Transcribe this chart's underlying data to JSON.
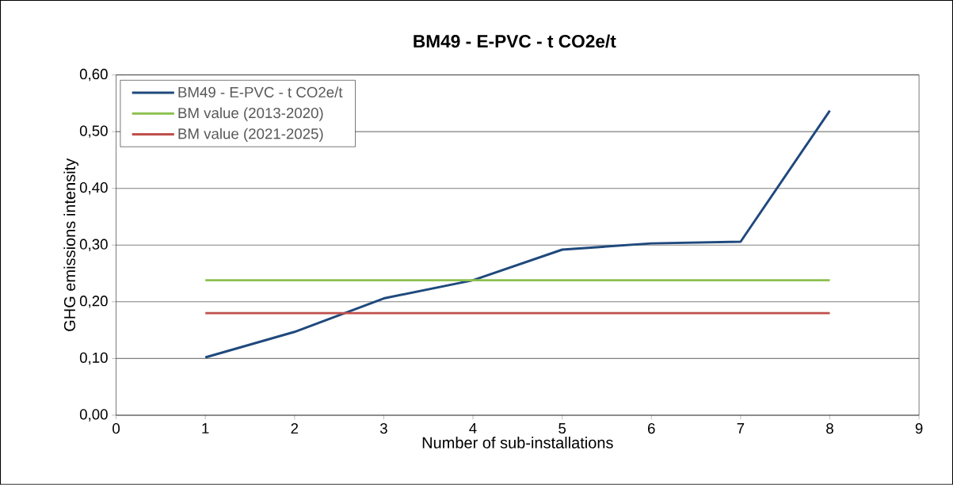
{
  "chart_data": {
    "type": "line",
    "title": "BM49 - E-PVC - t CO2e/t",
    "xlabel": "Number of sub-installations",
    "ylabel": "GHG emissions intensity",
    "xlim": [
      0,
      9
    ],
    "xticks": [
      0,
      1,
      2,
      3,
      4,
      5,
      6,
      7,
      8,
      9
    ],
    "ylim": [
      0,
      0.6
    ],
    "yticks": [
      {
        "value": 0,
        "label": "0,00"
      },
      {
        "value": 0.1,
        "label": "0,10"
      },
      {
        "value": 0.2,
        "label": "0,20"
      },
      {
        "value": 0.3,
        "label": "0,30"
      },
      {
        "value": 0.4,
        "label": "0,40"
      },
      {
        "value": 0.5,
        "label": "0,50"
      },
      {
        "value": 0.6,
        "label": "0,60"
      }
    ],
    "grid": "y",
    "legend": "top left",
    "marker": "none",
    "line_style": "solid",
    "series": [
      {
        "name": "BM49 - E-PVC - t CO2e/t",
        "color": "#1f497d",
        "x": [
          1,
          2,
          3,
          4,
          5,
          6,
          7,
          8
        ],
        "values": [
          0.102,
          0.147,
          0.206,
          0.238,
          0.292,
          0.303,
          0.306,
          0.537
        ]
      },
      {
        "name": "BM value (2013-2020)",
        "color": "#8cc04f",
        "x": [
          1,
          8
        ],
        "values": [
          0.238,
          0.238
        ]
      },
      {
        "name": "BM value (2021-2025)",
        "color": "#c0504d",
        "x": [
          1,
          8
        ],
        "values": [
          0.18,
          0.18
        ]
      }
    ]
  }
}
